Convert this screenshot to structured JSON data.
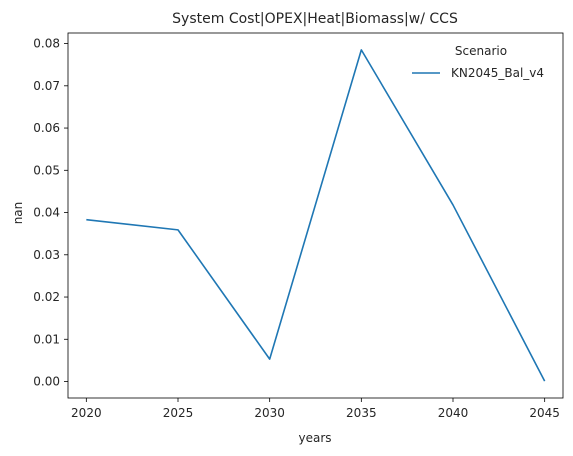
{
  "chart_data": {
    "type": "line",
    "title": "System Cost|OPEX|Heat|Biomass|w/ CCS",
    "xlabel": "years",
    "ylabel": "nan",
    "x": [
      2020,
      2025,
      2030,
      2035,
      2040,
      2045
    ],
    "series": [
      {
        "name": "KN2045_Bal_v4",
        "values": [
          0.0383,
          0.0359,
          0.0053,
          0.0785,
          0.0418,
          0.0001
        ],
        "color": "#1f77b4"
      }
    ],
    "xticks": [
      2020,
      2025,
      2030,
      2035,
      2040,
      2045
    ],
    "yticks": [
      0.0,
      0.01,
      0.02,
      0.03,
      0.04,
      0.05,
      0.06,
      0.07,
      0.08
    ],
    "ytick_labels": [
      "0.00",
      "0.01",
      "0.02",
      "0.03",
      "0.04",
      "0.05",
      "0.06",
      "0.07",
      "0.08"
    ],
    "xlim": [
      2019,
      2046
    ],
    "ylim": [
      -0.0039,
      0.0825
    ],
    "grid": false,
    "legend": {
      "title": "Scenario",
      "placement": "upper-right"
    }
  }
}
